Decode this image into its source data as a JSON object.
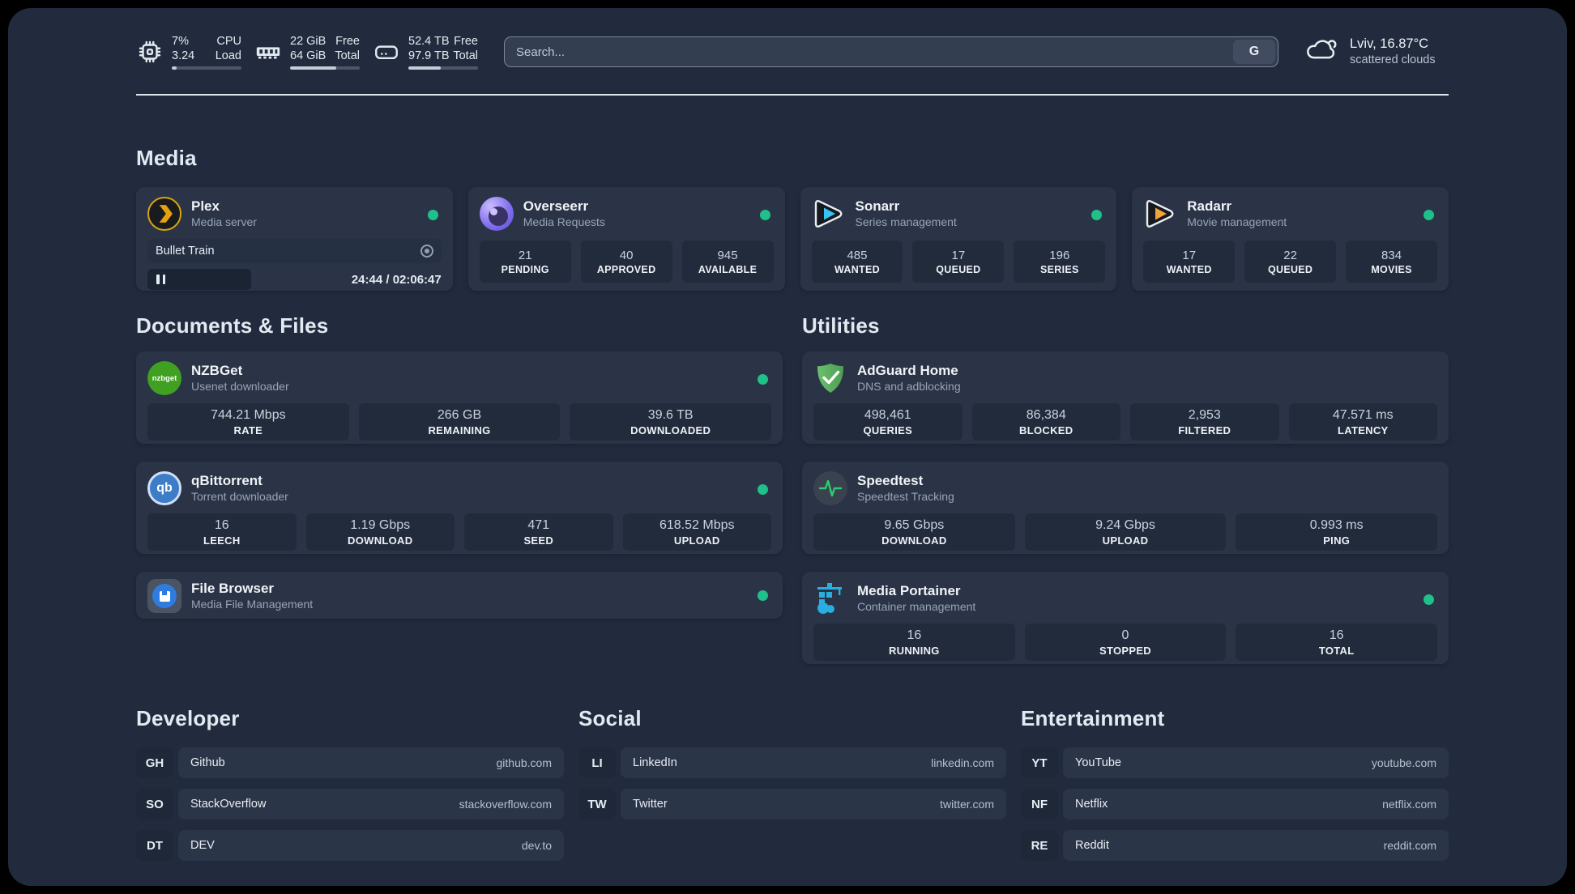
{
  "header": {
    "system_stats": [
      {
        "icon": "cpu-icon",
        "value_top": "7%",
        "value_bottom": "3.24",
        "label_top": "CPU",
        "label_bottom": "Load",
        "progress_pct": 7
      },
      {
        "icon": "ram-icon",
        "value_top": "22 GiB",
        "value_bottom": "64 GiB",
        "label_top": "Free",
        "label_bottom": "Total",
        "progress_pct": 66
      },
      {
        "icon": "disk-icon",
        "value_top": "52.4 TB",
        "value_bottom": "97.9 TB",
        "label_top": "Free",
        "label_bottom": "Total",
        "progress_pct": 47
      }
    ],
    "search": {
      "placeholder": "Search...",
      "provider_label": "G"
    },
    "weather": {
      "location": "Lviv, 16.87°C",
      "condition": "scattered clouds"
    }
  },
  "sections": {
    "media": {
      "title": "Media"
    },
    "documents": {
      "title": "Documents & Files"
    },
    "utilities": {
      "title": "Utilities"
    }
  },
  "apps": {
    "plex": {
      "name": "Plex",
      "desc": "Media server",
      "status": "online",
      "player": {
        "title": "Bullet Train",
        "state": "paused",
        "time": "24:44 / 02:06:47"
      }
    },
    "overseerr": {
      "name": "Overseerr",
      "desc": "Media Requests",
      "status": "online",
      "stats": [
        {
          "value": "21",
          "label": "PENDING"
        },
        {
          "value": "40",
          "label": "APPROVED"
        },
        {
          "value": "945",
          "label": "AVAILABLE"
        }
      ]
    },
    "sonarr": {
      "name": "Sonarr",
      "desc": "Series management",
      "status": "online",
      "stats": [
        {
          "value": "485",
          "label": "WANTED"
        },
        {
          "value": "17",
          "label": "QUEUED"
        },
        {
          "value": "196",
          "label": "SERIES"
        }
      ]
    },
    "radarr": {
      "name": "Radarr",
      "desc": "Movie management",
      "status": "online",
      "stats": [
        {
          "value": "17",
          "label": "WANTED"
        },
        {
          "value": "22",
          "label": "QUEUED"
        },
        {
          "value": "834",
          "label": "MOVIES"
        }
      ]
    },
    "nzbget": {
      "name": "NZBGet",
      "desc": "Usenet downloader",
      "status": "online",
      "icon_text": "nzbget",
      "stats": [
        {
          "value": "744.21 Mbps",
          "label": "RATE"
        },
        {
          "value": "266 GB",
          "label": "REMAINING"
        },
        {
          "value": "39.6 TB",
          "label": "DOWNLOADED"
        }
      ]
    },
    "qbittorrent": {
      "name": "qBittorrent",
      "desc": "Torrent downloader",
      "status": "online",
      "icon_text": "qb",
      "stats": [
        {
          "value": "16",
          "label": "LEECH"
        },
        {
          "value": "1.19 Gbps",
          "label": "DOWNLOAD"
        },
        {
          "value": "471",
          "label": "SEED"
        },
        {
          "value": "618.52 Mbps",
          "label": "UPLOAD"
        }
      ]
    },
    "filebrowser": {
      "name": "File Browser",
      "desc": "Media File Management",
      "status": "online"
    },
    "adguard": {
      "name": "AdGuard Home",
      "desc": "DNS and adblocking",
      "stats": [
        {
          "value": "498,461",
          "label": "QUERIES"
        },
        {
          "value": "86,384",
          "label": "BLOCKED"
        },
        {
          "value": "2,953",
          "label": "FILTERED"
        },
        {
          "value": "47.571 ms",
          "label": "LATENCY"
        }
      ]
    },
    "speedtest": {
      "name": "Speedtest",
      "desc": "Speedtest Tracking",
      "stats": [
        {
          "value": "9.65 Gbps",
          "label": "DOWNLOAD"
        },
        {
          "value": "9.24 Gbps",
          "label": "UPLOAD"
        },
        {
          "value": "0.993 ms",
          "label": "PING"
        }
      ]
    },
    "portainer": {
      "name": "Media Portainer",
      "desc": "Container management",
      "status": "online",
      "stats": [
        {
          "value": "16",
          "label": "RUNNING"
        },
        {
          "value": "0",
          "label": "STOPPED"
        },
        {
          "value": "16",
          "label": "TOTAL"
        }
      ]
    }
  },
  "bookmarks": [
    {
      "title": "Developer",
      "links": [
        {
          "abbr": "GH",
          "name": "Github",
          "url": "github.com"
        },
        {
          "abbr": "SO",
          "name": "StackOverflow",
          "url": "stackoverflow.com"
        },
        {
          "abbr": "DT",
          "name": "DEV",
          "url": "dev.to"
        }
      ]
    },
    {
      "title": "Social",
      "links": [
        {
          "abbr": "LI",
          "name": "LinkedIn",
          "url": "linkedin.com"
        },
        {
          "abbr": "TW",
          "name": "Twitter",
          "url": "twitter.com"
        }
      ]
    },
    {
      "title": "Entertainment",
      "links": [
        {
          "abbr": "YT",
          "name": "YouTube",
          "url": "youtube.com"
        },
        {
          "abbr": "NF",
          "name": "Netflix",
          "url": "netflix.com"
        },
        {
          "abbr": "RE",
          "name": "Reddit",
          "url": "reddit.com"
        }
      ]
    }
  ],
  "colors": {
    "panel_bg": "#212b3d",
    "card_bg": "#2a3446",
    "statbox_bg": "#222b3c",
    "status_online": "#1fc08a",
    "plex_amber": "#e5a00d",
    "overseerr_purple": "#8371ee",
    "sonarr_blue": "#35c5f4",
    "radarr_amber": "#f2a33c",
    "nzbget_green": "#3fa022",
    "qbittorrent_blue": "#3d7cc7",
    "filebrowser_blue": "#2e7ce0",
    "adguard_green": "#5fb561",
    "speedtest_green": "#2ecc71",
    "portainer_blue": "#29aee0"
  }
}
